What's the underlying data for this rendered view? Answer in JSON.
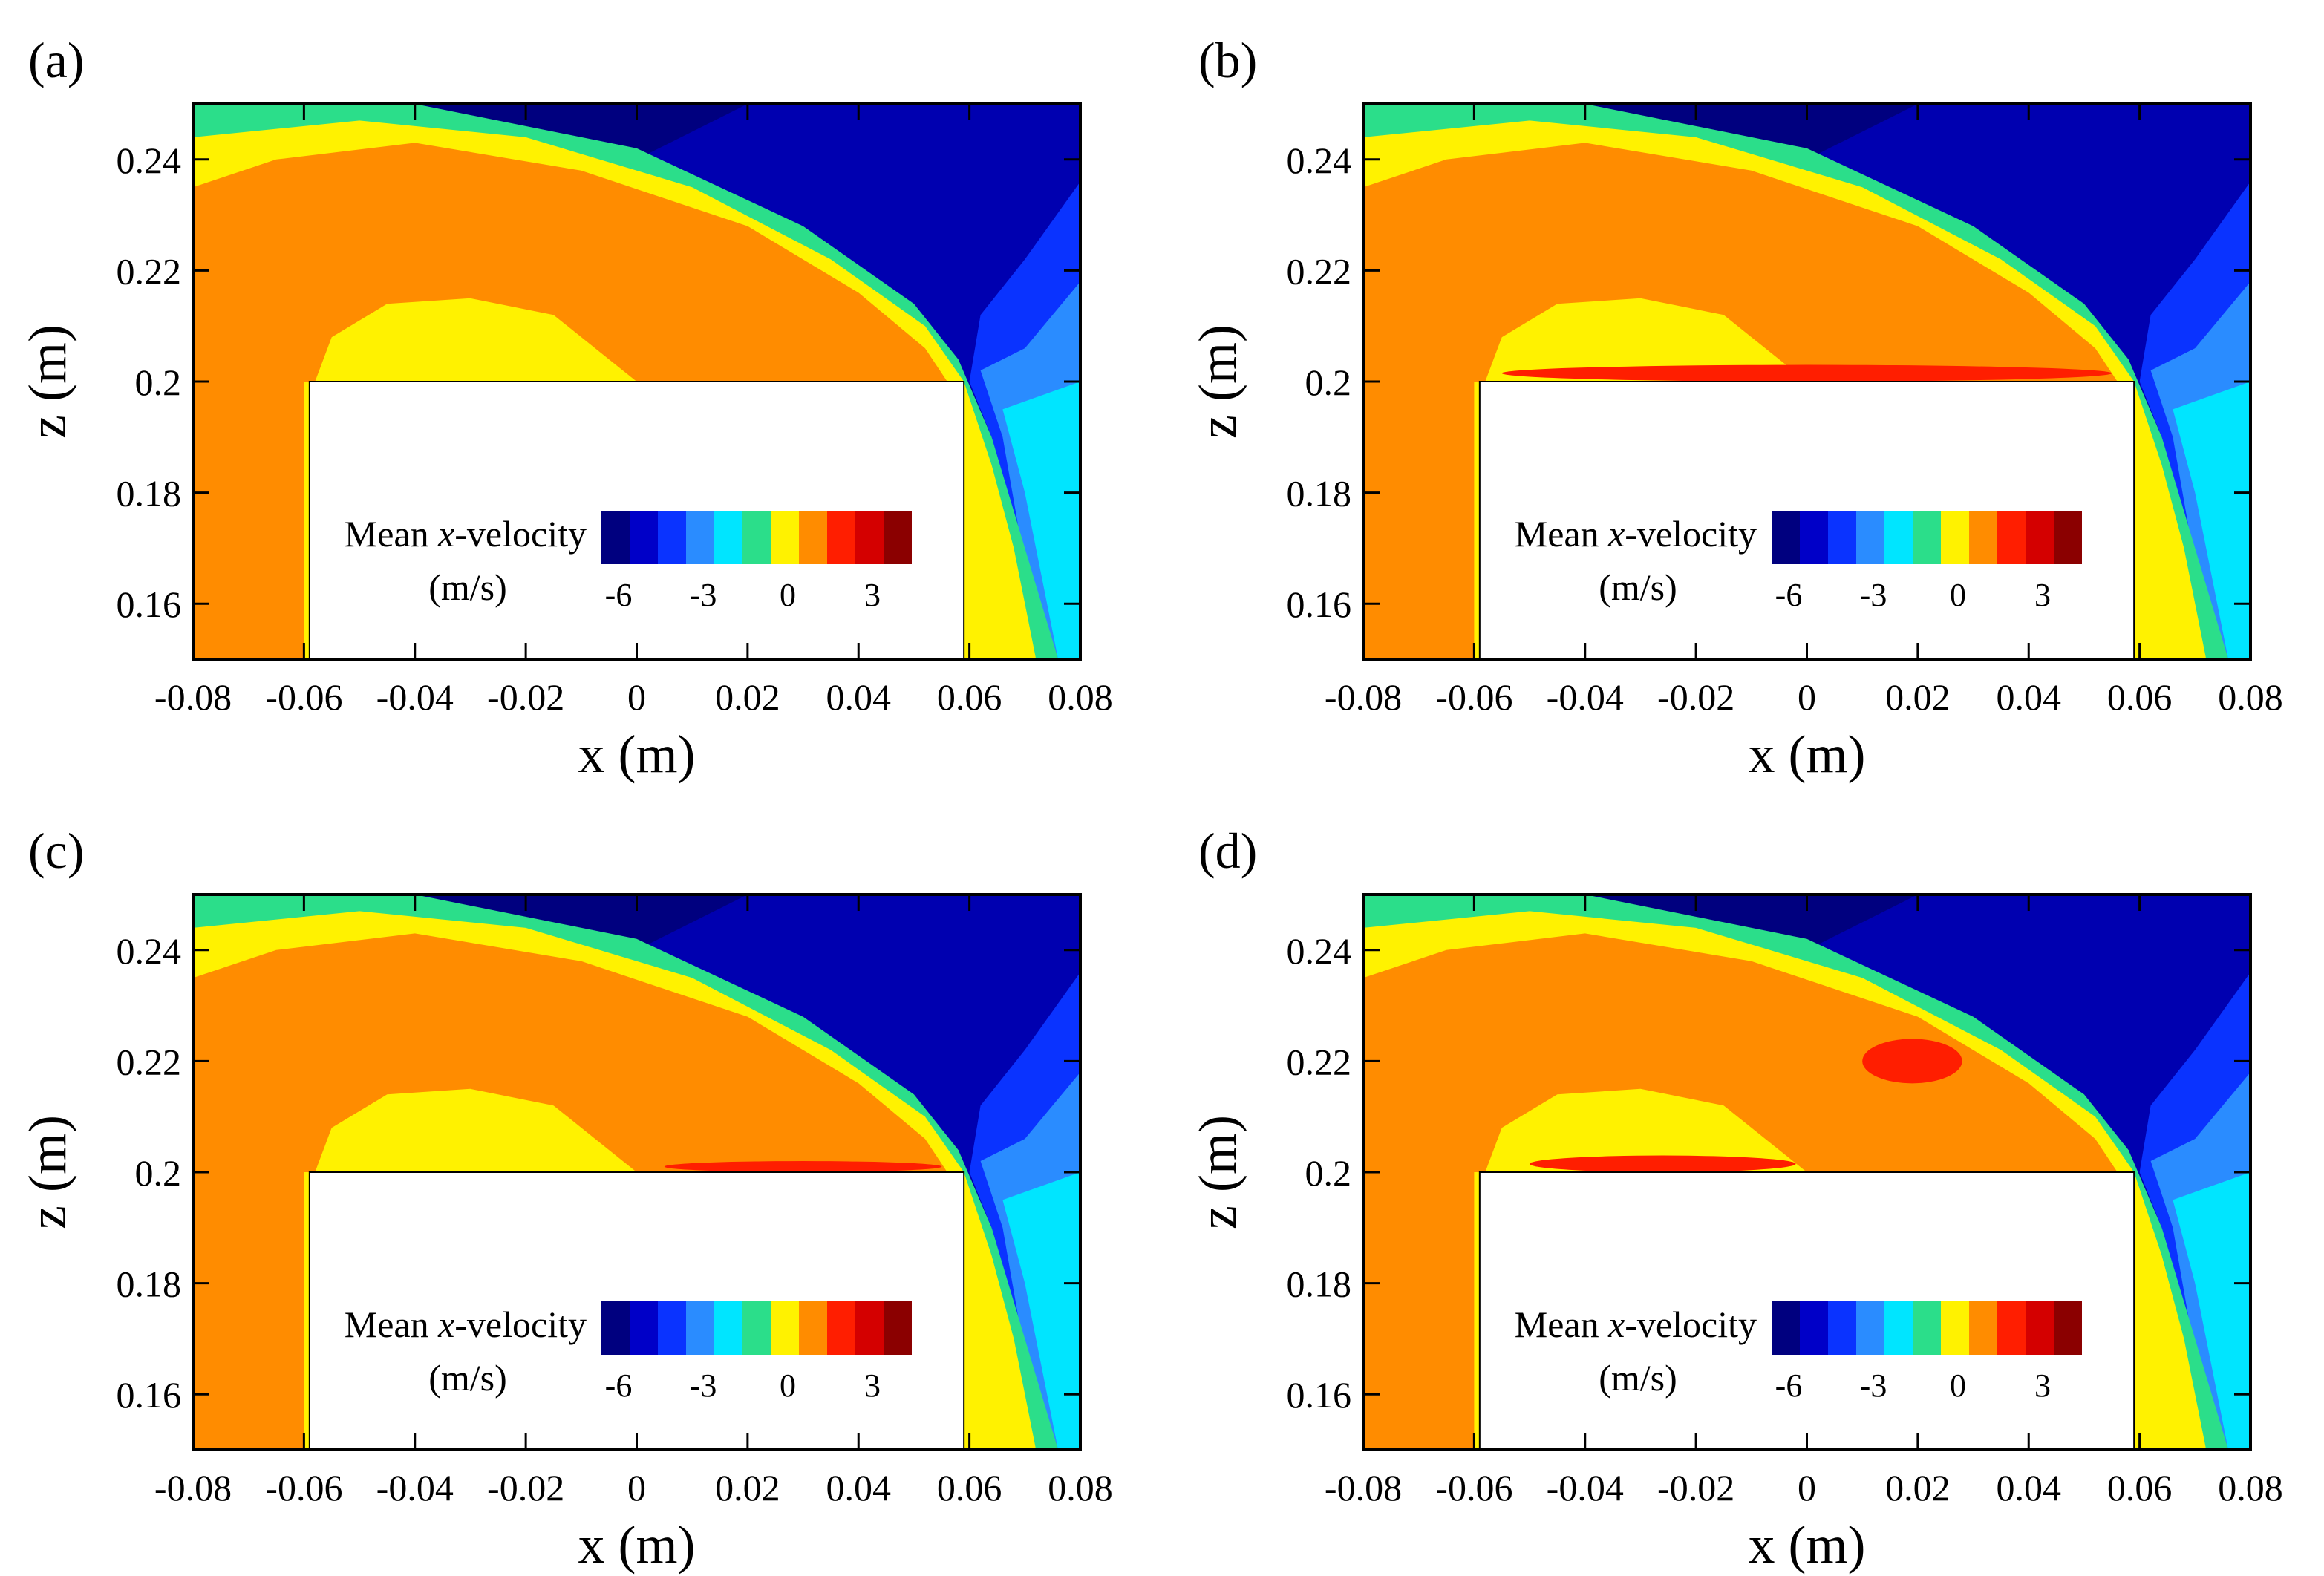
{
  "figure": {
    "description_hidden": false
  },
  "chart_data": [
    {
      "type": "heatmap",
      "panel_label": "(a)",
      "xlabel": "x (m)",
      "ylabel": "z (m)",
      "xlim": [
        -0.08,
        0.08
      ],
      "ylim": [
        0.15,
        0.25
      ],
      "x_ticks": [
        "-0.08",
        "-0.06",
        "-0.04",
        "-0.02",
        "0",
        "0.02",
        "0.04",
        "0.06",
        "0.08"
      ],
      "y_ticks": [
        "0.16",
        "0.18",
        "0.2",
        "0.22",
        "0.24"
      ],
      "legend": {
        "title_pre": "Mean ",
        "title_var": "x",
        "title_post": "-velocity",
        "unit": "(m/s)",
        "ticks": [
          "-6",
          "-3",
          "0",
          "3"
        ]
      },
      "obstacle": {
        "x_range": [
          -0.059,
          0.059
        ],
        "z_top": 0.2
      },
      "red_regions": []
    },
    {
      "type": "heatmap",
      "panel_label": "(b)",
      "xlabel": "x (m)",
      "ylabel": "z (m)",
      "xlim": [
        -0.08,
        0.08
      ],
      "ylim": [
        0.15,
        0.25
      ],
      "x_ticks": [
        "-0.08",
        "-0.06",
        "-0.04",
        "-0.02",
        "0",
        "0.02",
        "0.04",
        "0.06",
        "0.08"
      ],
      "y_ticks": [
        "0.16",
        "0.18",
        "0.2",
        "0.22",
        "0.24"
      ],
      "legend": {
        "title_pre": "Mean ",
        "title_var": "x",
        "title_post": "-velocity",
        "unit": "(m/s)",
        "ticks": [
          "-6",
          "-3",
          "0",
          "3"
        ]
      },
      "obstacle": {
        "x_range": [
          -0.059,
          0.059
        ],
        "z_top": 0.2
      },
      "red_regions": [
        {
          "x_range": [
            -0.055,
            0.055
          ],
          "z_range": [
            0.2,
            0.203
          ]
        }
      ]
    },
    {
      "type": "heatmap",
      "panel_label": "(c)",
      "xlabel": "x (m)",
      "ylabel": "z (m)",
      "xlim": [
        -0.08,
        0.08
      ],
      "ylim": [
        0.15,
        0.25
      ],
      "x_ticks": [
        "-0.08",
        "-0.06",
        "-0.04",
        "-0.02",
        "0",
        "0.02",
        "0.04",
        "0.06",
        "0.08"
      ],
      "y_ticks": [
        "0.16",
        "0.18",
        "0.2",
        "0.22",
        "0.24"
      ],
      "legend": {
        "title_pre": "Mean ",
        "title_var": "x",
        "title_post": "-velocity",
        "unit": "(m/s)",
        "ticks": [
          "-6",
          "-3",
          "0",
          "3"
        ]
      },
      "obstacle": {
        "x_range": [
          -0.059,
          0.059
        ],
        "z_top": 0.2
      },
      "red_regions": [
        {
          "x_range": [
            0.005,
            0.055
          ],
          "z_range": [
            0.2,
            0.202
          ]
        }
      ]
    },
    {
      "type": "heatmap",
      "panel_label": "(d)",
      "xlabel": "x (m)",
      "ylabel": "z (m)",
      "xlim": [
        -0.08,
        0.08
      ],
      "ylim": [
        0.15,
        0.25
      ],
      "x_ticks": [
        "-0.08",
        "-0.06",
        "-0.04",
        "-0.02",
        "0",
        "0.02",
        "0.04",
        "0.06",
        "0.08"
      ],
      "y_ticks": [
        "0.16",
        "0.18",
        "0.2",
        "0.22",
        "0.24"
      ],
      "legend": {
        "title_pre": "Mean ",
        "title_var": "x",
        "title_post": "-velocity",
        "unit": "(m/s)",
        "ticks": [
          "-6",
          "-3",
          "0",
          "3"
        ]
      },
      "obstacle": {
        "x_range": [
          -0.059,
          0.059
        ],
        "z_top": 0.2
      },
      "red_regions": [
        {
          "x_range": [
            0.01,
            0.028
          ],
          "z_range": [
            0.216,
            0.224
          ]
        },
        {
          "x_range": [
            -0.05,
            -0.002
          ],
          "z_range": [
            0.2,
            0.203
          ]
        }
      ]
    }
  ],
  "colormap": [
    "#00007f",
    "#0000c8",
    "#0a33ff",
    "#2a8cff",
    "#00e5ff",
    "#2bde8a",
    "#fff200",
    "#ff8c00",
    "#ff1e00",
    "#d40000",
    "#8b0000"
  ]
}
